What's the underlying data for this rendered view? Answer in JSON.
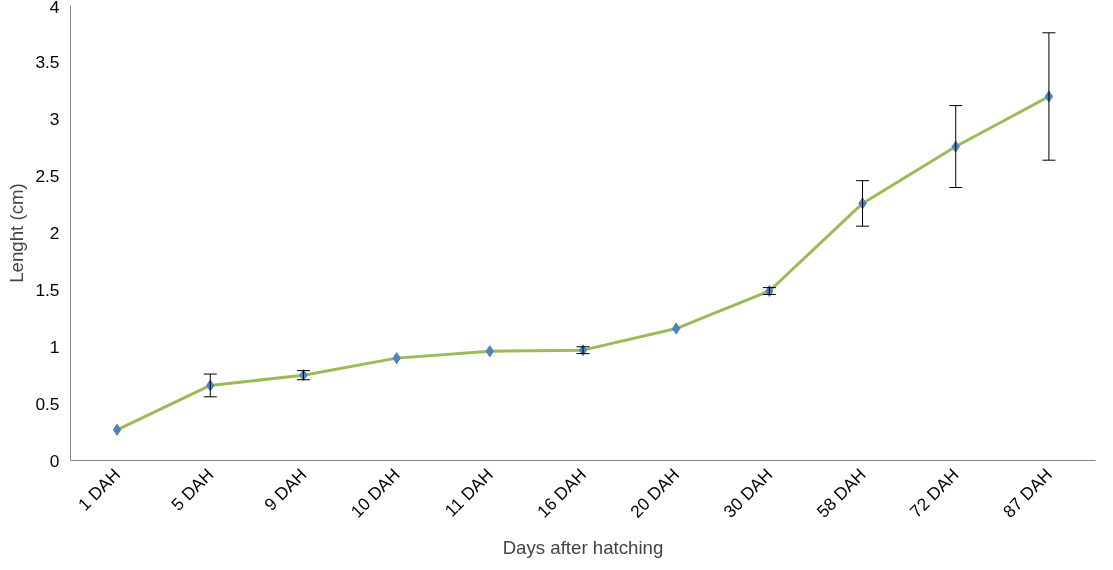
{
  "chart_data": {
    "type": "line",
    "xlabel": "Days after hatching",
    "ylabel": "Lenght (cm)",
    "categories": [
      "1 DAH",
      "5 DAH",
      "9 DAH",
      "10 DAH",
      "11 DAH",
      "16 DAH",
      "20 DAH",
      "30 DAH",
      "58 DAH",
      "72 DAH",
      "87 DAH"
    ],
    "series": [
      {
        "color": "#9bbb59",
        "marker": "none",
        "values": [
          0.27,
          0.66,
          0.75,
          0.9,
          0.96,
          0.97,
          1.16,
          1.49,
          2.26,
          2.76,
          3.2
        ]
      },
      {
        "type": "scatter",
        "marker": "diamond",
        "color": "#4f81bd",
        "values": [
          0.27,
          0.66,
          0.75,
          0.9,
          0.96,
          0.97,
          1.16,
          1.49,
          2.26,
          2.76,
          3.2
        ],
        "errors": [
          null,
          0.1,
          0.04,
          null,
          null,
          0.03,
          null,
          0.03,
          0.2,
          0.36,
          0.56
        ]
      }
    ],
    "ylim": [
      0,
      4
    ],
    "yticks": [
      0,
      0.5,
      1,
      1.5,
      2,
      2.5,
      3,
      3.5,
      4
    ],
    "grid": false
  }
}
